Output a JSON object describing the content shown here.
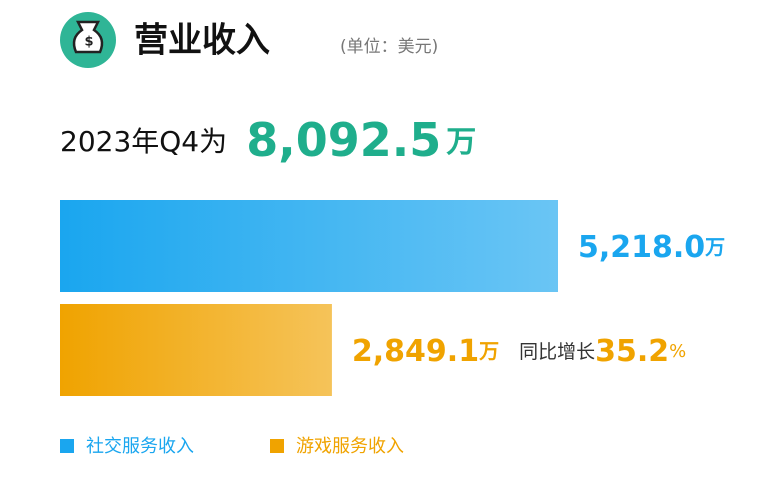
{
  "chart_data": {
    "type": "bar",
    "title": "营业收入",
    "subtitle": "(单位：美元)",
    "headline": "2023年Q4为",
    "total": "8,092.5",
    "unit": "万",
    "categories": [
      "社交服务收入",
      "游戏服务收入"
    ],
    "values": [
      5218.0,
      2849.1
    ],
    "value_labels": [
      "5,218.0",
      "2,849.1"
    ],
    "colors": [
      "#1aa6ef",
      "#f0a300"
    ],
    "growth": {
      "label": "同比增长",
      "value": "35.2",
      "unit": "%"
    }
  }
}
